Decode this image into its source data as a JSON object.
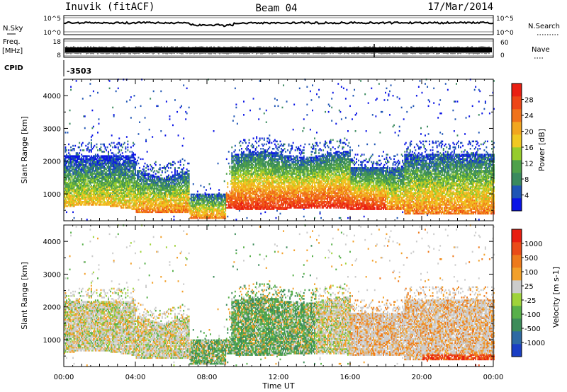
{
  "header": {
    "station": "Inuvik (fitACF)",
    "beam": "Beam 04",
    "date": "17/Mar/2014"
  },
  "top_panels": {
    "nsky_label": "N.Sky",
    "nsky_ticks_left": [
      "10^5",
      "10^0"
    ],
    "nsky_ticks_right": [
      "10^5",
      "10^0"
    ],
    "nsearch_label": "N.Search",
    "freq_label": "Freq.",
    "freq_unit": "[MHz]",
    "freq_ticks": [
      "18",
      "8"
    ],
    "nave_label": "Nave",
    "nave_ticks": [
      "60",
      "0"
    ],
    "cpid_label": "CPID",
    "cpid_value": "-3503"
  },
  "chart_data": [
    {
      "type": "heatmap",
      "name": "power",
      "ylabel": "Slant Range [km]",
      "xlabel": "",
      "ylim": [
        180,
        4500
      ],
      "xlim": [
        0,
        24
      ],
      "yticks": [
        1000,
        2000,
        3000,
        4000
      ],
      "colorbar": {
        "label": "Power [dB]",
        "ticks": [
          4,
          8,
          12,
          16,
          20,
          24,
          28
        ],
        "range": [
          0,
          32
        ],
        "colors": [
          "#0a14e6",
          "#1f55b5",
          "#3a8a5e",
          "#4fa14a",
          "#96cc2c",
          "#f0c822",
          "#f2a61f",
          "#f0721a",
          "#ee4616",
          "#ea1f12"
        ]
      }
    },
    {
      "type": "heatmap",
      "name": "velocity",
      "ylabel": "Slant Range [km]",
      "xlabel": "Time UT",
      "ylim": [
        180,
        4500
      ],
      "xlim": [
        0,
        24
      ],
      "yticks": [
        1000,
        2000,
        3000,
        4000
      ],
      "xticks": [
        "00:00",
        "04:00",
        "08:00",
        "12:00",
        "16:00",
        "20:00",
        "00:00"
      ],
      "colorbar": {
        "label": "Velocity [m s-1]",
        "ticks": [
          "1000",
          "500",
          "100",
          "25",
          "-25",
          "-100",
          "-500",
          "-1000"
        ],
        "colors": [
          "#1a3fc4",
          "#2e6aa3",
          "#3d8c5a",
          "#58b04a",
          "#9fd33a",
          "#cccccc",
          "#f2a02a",
          "#ee7a1c",
          "#ea4b18",
          "#e81e10"
        ]
      }
    }
  ]
}
